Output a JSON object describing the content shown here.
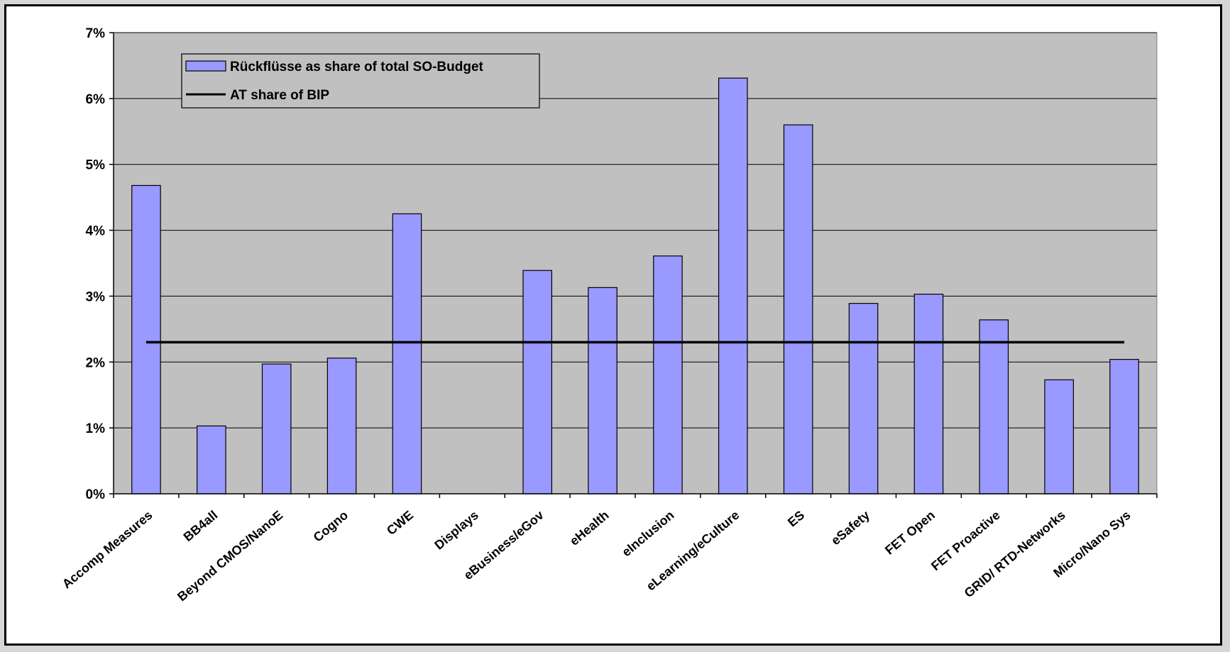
{
  "chart_data": {
    "type": "bar",
    "categories": [
      "Accomp Measures",
      "BB4all",
      "Beyond CMOS/NanoE",
      "Cogno",
      "CWE",
      "Displays",
      "eBusiness/eGov",
      "eHealth",
      "eInclusion",
      "eLearning/eCulture",
      "ES",
      "eSafety",
      "FET Open",
      "FET Proactive",
      "GRID/ RTD-Networks",
      "Micro/Nano Sys"
    ],
    "series": [
      {
        "name": "Rückflüsse as share of total SO-Budget",
        "type": "bar",
        "color": "#9999ff",
        "values": [
          4.68,
          1.03,
          1.97,
          2.06,
          4.25,
          0,
          3.39,
          3.13,
          3.61,
          6.31,
          5.6,
          2.89,
          3.03,
          2.64,
          1.73,
          2.04
        ]
      },
      {
        "name": "AT share of BIP",
        "type": "line",
        "color": "#000000",
        "value": 2.3
      }
    ],
    "y_ticks": [
      "0%",
      "1%",
      "2%",
      "3%",
      "4%",
      "5%",
      "6%",
      "7%"
    ],
    "ylim": [
      0,
      7
    ],
    "grid": true,
    "legend_position": "top-left",
    "plot_background": "#c0c0c0",
    "title": "",
    "xlabel": "",
    "ylabel": ""
  }
}
